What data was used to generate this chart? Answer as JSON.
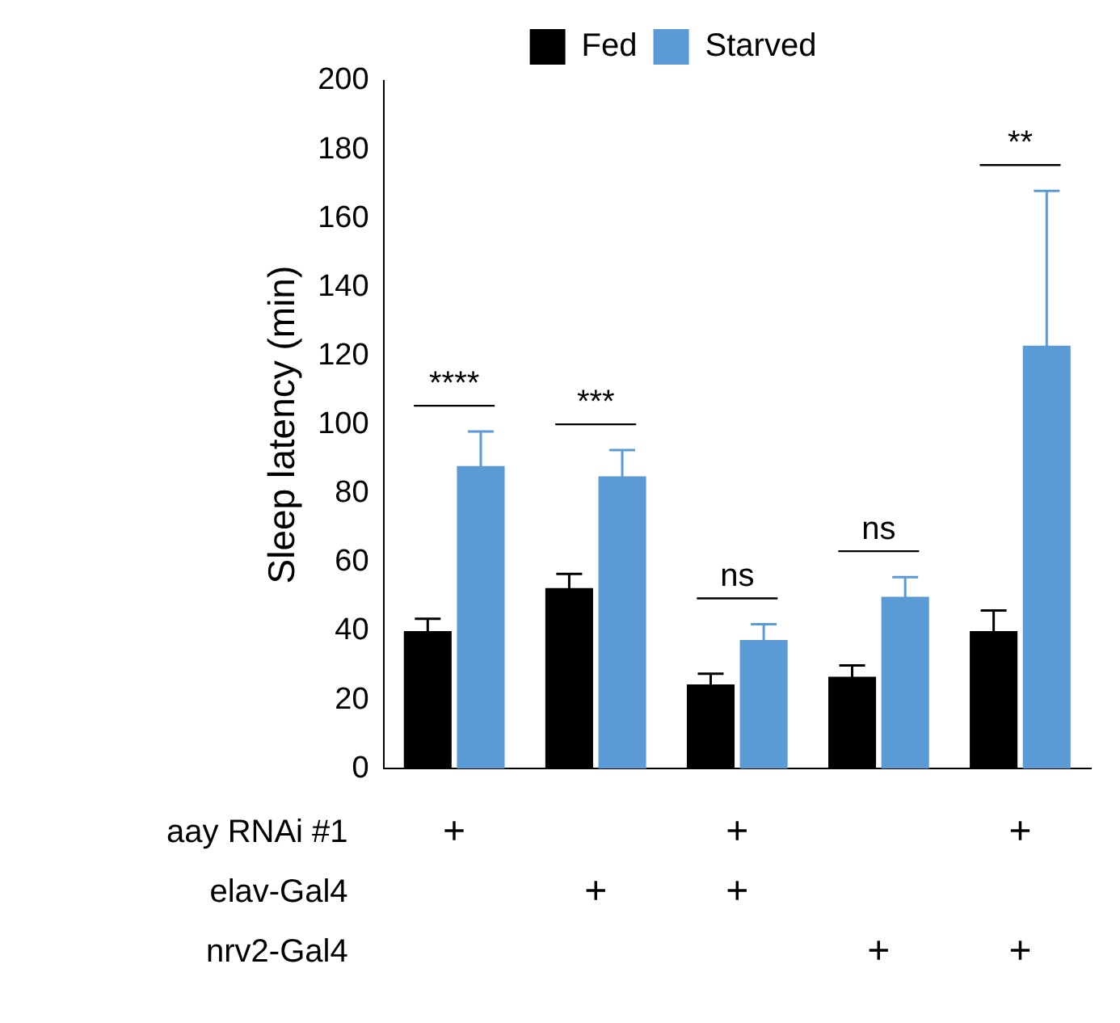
{
  "chart_data": [
    {
      "type": "bar",
      "ylabel": "Sleep latency (min)",
      "categories": [
        null,
        null,
        null,
        null,
        null
      ],
      "series": [
        {
          "name": "Fed",
          "color": "#000000",
          "values": [
            40,
            52.5,
            24.5,
            26.7,
            40
          ],
          "errors": [
            3.6,
            4.1,
            3.1,
            3.3,
            6
          ]
        },
        {
          "name": "Starved",
          "color": "#5b9bd5",
          "values": [
            88,
            85,
            37.4,
            50,
            123
          ],
          "errors": [
            10,
            7.6,
            4.6,
            5.7,
            45
          ]
        }
      ],
      "ylim": [
        0,
        200
      ],
      "yticks": [
        0,
        20,
        40,
        60,
        80,
        100,
        120,
        140,
        160,
        180,
        200
      ],
      "grid": false,
      "legend": "top",
      "annotations": [
        "****",
        "***",
        "ns",
        "ns",
        "**"
      ]
    },
    {
      "type": "heatmap",
      "categories": [
        null,
        null,
        null,
        null,
        null
      ],
      "y_categories": [
        "aay RNAi #1",
        "elav-Gal4",
        "nrv2-Gal4"
      ],
      "cells": [
        [
          "+",
          null,
          "+",
          null,
          "+"
        ],
        [
          null,
          "+",
          "+",
          null,
          null
        ],
        [
          null,
          null,
          null,
          "+",
          "+"
        ]
      ]
    }
  ]
}
